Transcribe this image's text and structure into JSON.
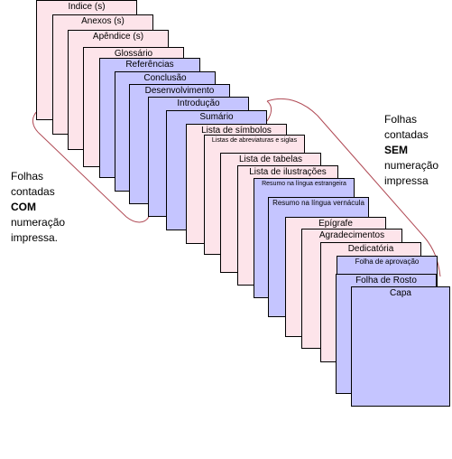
{
  "sheets": [
    {
      "label": "Indice (s)",
      "tone": "pink"
    },
    {
      "label": "Anexos (s)",
      "tone": "pink"
    },
    {
      "label": "Apêndice (s)",
      "tone": "pink"
    },
    {
      "label": "Glossário",
      "tone": "pink"
    },
    {
      "label": "Referências",
      "tone": "lav"
    },
    {
      "label": "Conclusão",
      "tone": "lav"
    },
    {
      "label": "Desenvolvimento",
      "tone": "lav"
    },
    {
      "label": "Introdução",
      "tone": "lav"
    },
    {
      "label": "Sumário",
      "tone": "lav"
    },
    {
      "label": "Lista de símbolos",
      "tone": "pink"
    },
    {
      "label": "Listas de abreviaturas e siglas",
      "tone": "pink"
    },
    {
      "label": "Lista de tabelas",
      "tone": "pink"
    },
    {
      "label": "Lista de ilustrações",
      "tone": "pink"
    },
    {
      "label": "Resumo na língua estrangeira",
      "tone": "lav"
    },
    {
      "label": "Resumo na língua vernácula",
      "tone": "lav"
    },
    {
      "label": "Epígrafe",
      "tone": "pink"
    },
    {
      "label": "Agradecimentos",
      "tone": "pink"
    },
    {
      "label": "Dedicatória",
      "tone": "pink"
    },
    {
      "label": "Folha de aprovação",
      "tone": "lav"
    },
    {
      "label": "Folha de Rosto",
      "tone": "lav"
    },
    {
      "label": "Capa",
      "tone": "lav"
    }
  ],
  "left_note": {
    "line1": "Folhas",
    "line2": "contadas",
    "bold": "COM",
    "line3": "numeração",
    "line4": "impressa."
  },
  "right_note": {
    "line1": "Folhas",
    "line2": "contadas",
    "bold": "SEM",
    "line3": "numeração",
    "line4": "impressa"
  }
}
